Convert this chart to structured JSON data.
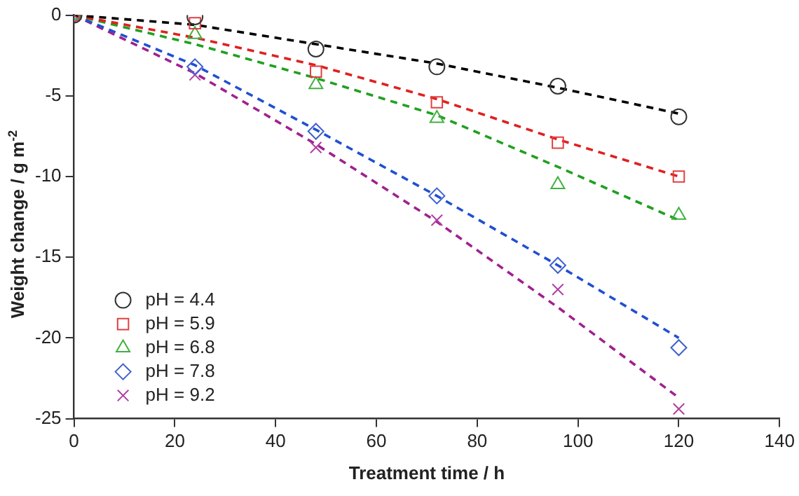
{
  "chart_data": {
    "type": "scatter",
    "xlabel": "Treatment time / h",
    "ylabel": "Weight change / g m$^{-2}$",
    "x": [
      0,
      24,
      48,
      72,
      96,
      120
    ],
    "xlim": [
      0,
      140
    ],
    "xticks": [
      0,
      20,
      40,
      60,
      80,
      100,
      120,
      140
    ],
    "ylim": [
      -25,
      0
    ],
    "yticks": [
      -25,
      -20,
      -15,
      -10,
      -5,
      0
    ],
    "grid": false,
    "legend": "bottom left",
    "series": [
      {
        "name": "pH = 4.4",
        "color": "#333333",
        "marker": "circle",
        "values": [
          0,
          -0.1,
          -2.1,
          -3.2,
          -4.4,
          -6.3
        ]
      },
      {
        "name": "pH = 5.9",
        "color": "#e04040",
        "marker": "square",
        "values": [
          0,
          -0.5,
          -3.5,
          -5.4,
          -7.9,
          -10.0
        ]
      },
      {
        "name": "pH = 6.8",
        "color": "#40b040",
        "marker": "triangle",
        "values": [
          0,
          -1.2,
          -4.3,
          -6.4,
          -10.5,
          -12.4
        ]
      },
      {
        "name": "pH = 7.8",
        "color": "#4060d0",
        "marker": "diamond",
        "values": [
          0,
          -3.2,
          -7.2,
          -11.2,
          -15.5,
          -20.6
        ]
      },
      {
        "name": "pH = 9.2",
        "color": "#b040a0",
        "marker": "cross",
        "values": [
          0,
          -3.7,
          -8.2,
          -12.7,
          -17.0,
          -24.4
        ]
      },
      {
        "type": "line",
        "color": "#000000",
        "line_style": "dashed",
        "marker": "none",
        "values": [
          0,
          -0.6,
          -1.8,
          -3.0,
          -4.5,
          -6.1
        ]
      },
      {
        "type": "line",
        "color": "#e02020",
        "line_style": "dashed",
        "marker": "none",
        "values": [
          0,
          -1.4,
          -3.1,
          -5.2,
          -7.7,
          -10.0
        ]
      },
      {
        "type": "line",
        "color": "#20a020",
        "line_style": "dashed",
        "marker": "none",
        "values": [
          0,
          -1.8,
          -3.9,
          -6.2,
          -9.4,
          -12.7
        ]
      },
      {
        "type": "line",
        "color": "#2050d0",
        "line_style": "dashed",
        "marker": "none",
        "values": [
          0,
          -3.1,
          -7.1,
          -11.2,
          -15.5,
          -20.0
        ]
      },
      {
        "type": "line",
        "color": "#a02090",
        "line_style": "dashed",
        "marker": "none",
        "values": [
          0,
          -3.6,
          -8.0,
          -12.8,
          -18.1,
          -23.7
        ]
      }
    ]
  }
}
